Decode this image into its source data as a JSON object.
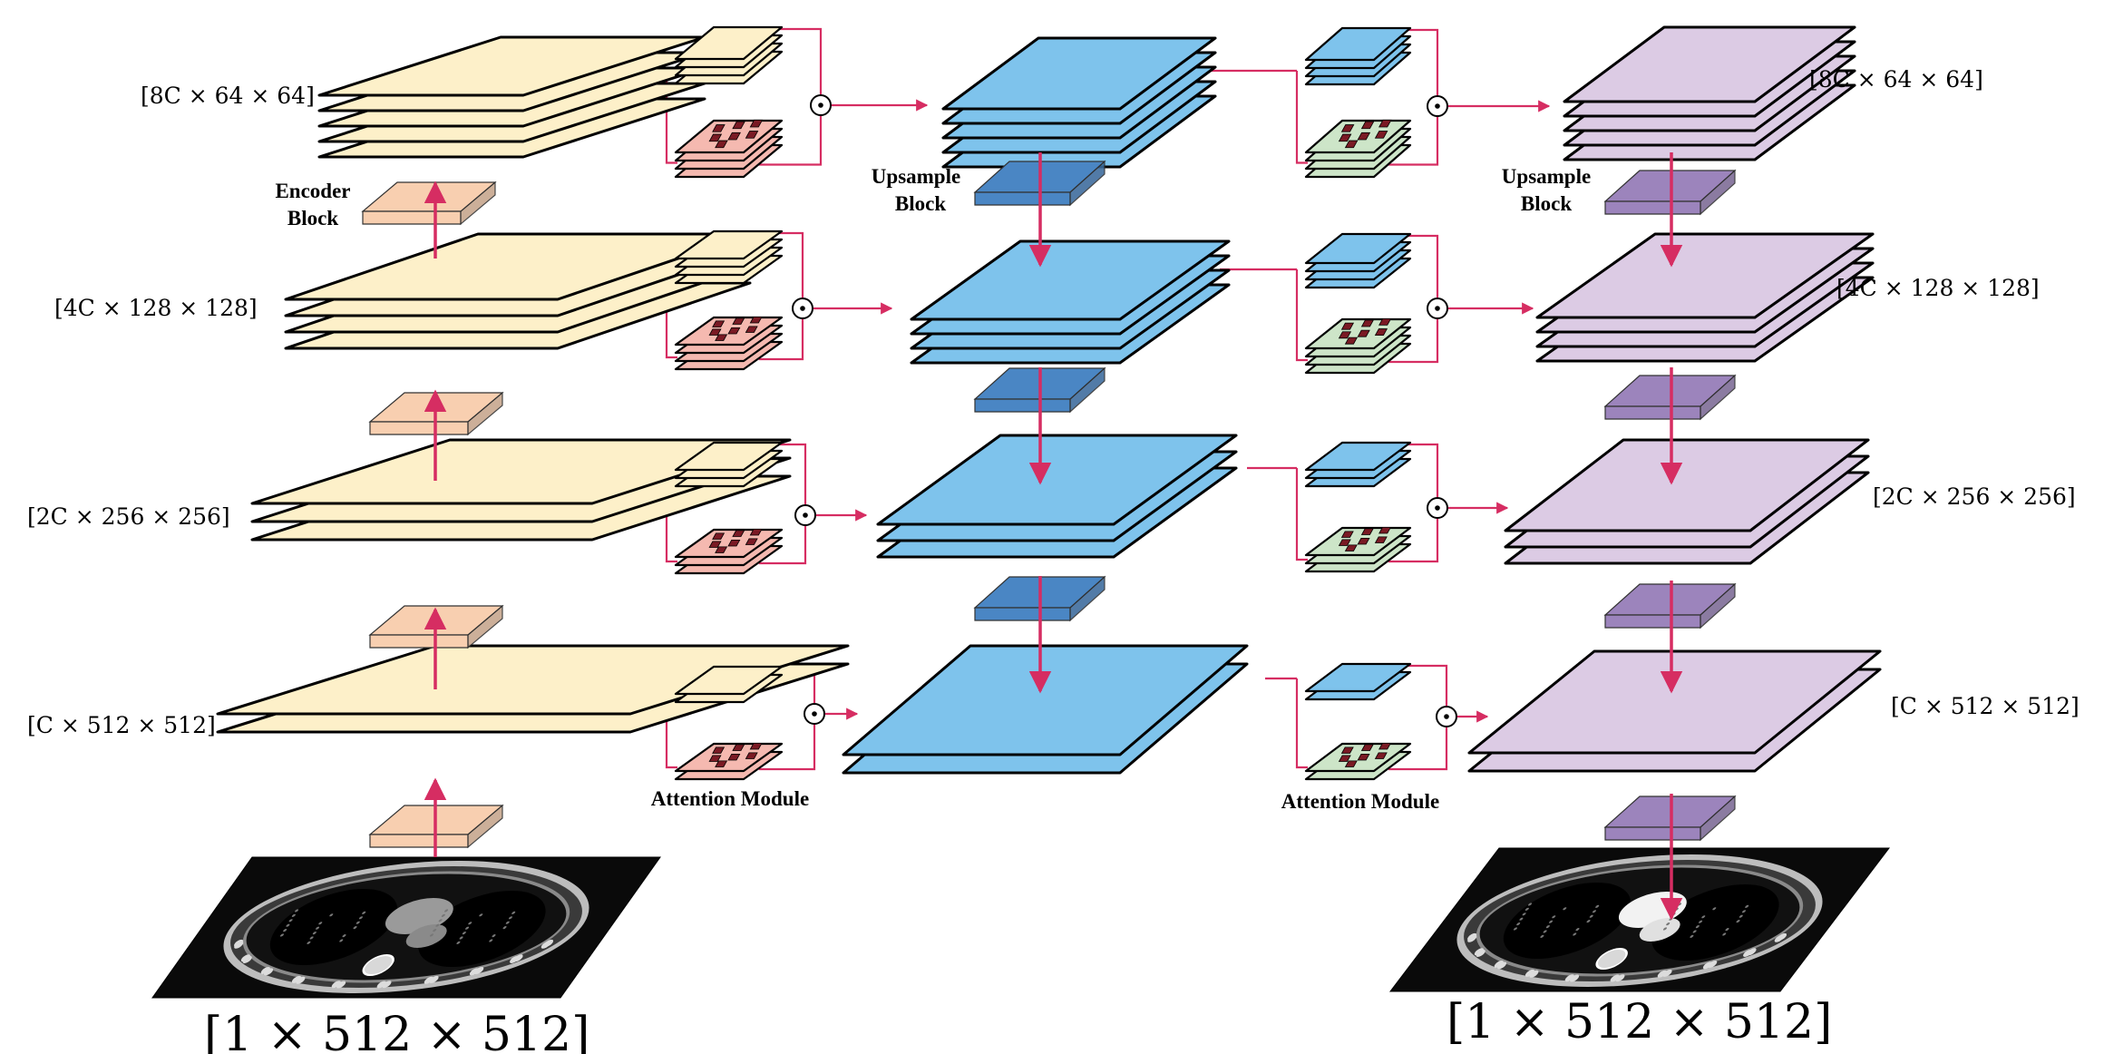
{
  "colors": {
    "arrow": "#d62d62",
    "encoder_sheet": "#fdf0c9",
    "encoder_block": "#f8cfb0",
    "decoder1_sheet": "#7ec3ec",
    "decoder1_block": "#4a86c4",
    "decoder2_sheet": "#dccbe4",
    "decoder2_block": "#9c84bc",
    "attention_red": "#f5b9b0",
    "attention_green": "#cde5c8",
    "patch": "#7a1a24",
    "ct_background": "#0a0a0a"
  },
  "labels": {
    "enc_l4": "[8C × 64 × 64]",
    "enc_l3": "[4C × 128 × 128]",
    "enc_l2": "[2C × 256 × 256]",
    "enc_l1": "[C × 512 × 512]",
    "dec_l4": "[8C × 64 × 64]",
    "dec_l3": "[4C × 128 × 128]",
    "dec_l2": "[2C × 256 × 256]",
    "dec_l1": "[C × 512 × 512]",
    "input": "[1 × 512 × 512]",
    "output": "[1 × 512 × 512]",
    "encoder_block_1": "Encoder",
    "encoder_block_2": "Block",
    "upsample_a1": "Upsample",
    "upsample_a2": "Block",
    "upsample_b1": "Upsample",
    "upsample_b2": "Block",
    "attention_a": "Attention Module",
    "attention_b": "Attention Module",
    "odot": "⊙"
  },
  "icons": {
    "ct_input": "ct-scan-slice-icon",
    "ct_output": "ct-scan-slice-icon",
    "product": "elementwise-product-icon"
  }
}
